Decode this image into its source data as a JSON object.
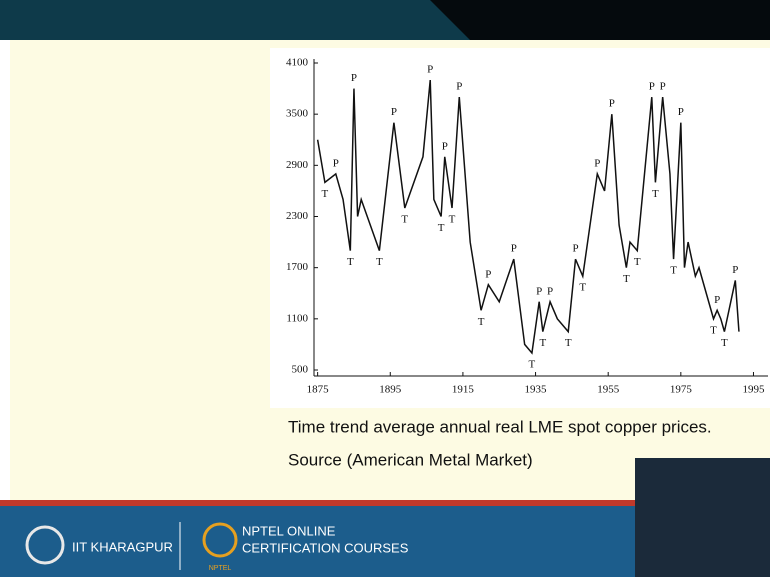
{
  "chart_data": {
    "type": "line",
    "x": [
      1875,
      1877,
      1880,
      1882,
      1884,
      1885,
      1886,
      1887,
      1892,
      1896,
      1899,
      1904,
      1906,
      1907,
      1909,
      1910,
      1912,
      1914,
      1917,
      1920,
      1922,
      1925,
      1929,
      1932,
      1934,
      1936,
      1937,
      1939,
      1941,
      1944,
      1946,
      1948,
      1952,
      1954,
      1956,
      1958,
      1960,
      1961,
      1963,
      1967,
      1968,
      1970,
      1972,
      1973,
      1975,
      1976,
      1977,
      1979,
      1980,
      1982,
      1984,
      1985,
      1986,
      1987,
      1990,
      1991
    ],
    "values": [
      3200,
      2700,
      2800,
      2500,
      1900,
      3800,
      2300,
      2500,
      1900,
      3400,
      2400,
      3000,
      3900,
      2500,
      2300,
      3000,
      2400,
      3700,
      2000,
      1200,
      1500,
      1300,
      1800,
      800,
      700,
      1300,
      950,
      1300,
      1100,
      950,
      1800,
      1600,
      2800,
      2600,
      3500,
      2200,
      1700,
      2000,
      1900,
      3700,
      2700,
      3700,
      2800,
      1800,
      3400,
      1700,
      2000,
      1600,
      1700,
      1400,
      1100,
      1200,
      1100,
      950,
      1550,
      950
    ],
    "point_labels": [
      null,
      "T",
      "P",
      null,
      "T",
      "P",
      null,
      null,
      "T",
      "P",
      "T",
      null,
      "P",
      null,
      "T",
      "P",
      "T",
      "P",
      null,
      "T",
      "P",
      null,
      "P",
      null,
      "T",
      "P",
      "T",
      "P",
      null,
      "T",
      "P",
      "T",
      "P",
      null,
      "P",
      null,
      "T",
      null,
      "T",
      "P",
      "T",
      "P",
      null,
      "T",
      "P",
      null,
      null,
      null,
      null,
      null,
      "T",
      "P",
      null,
      "T",
      "P",
      null
    ],
    "color": "#111111",
    "xlim": [
      1874,
      1999
    ],
    "xticks": [
      1875,
      1895,
      1915,
      1935,
      1955,
      1975,
      1995
    ],
    "ylim": [
      500,
      4100
    ],
    "yticks": [
      500,
      1100,
      1700,
      2300,
      2900,
      3500,
      4100
    ],
    "caption": [
      "Time trend average annual real LME spot copper prices.",
      "Source (American Metal Market)"
    ]
  },
  "footer": {
    "institute": "IIT KHARAGPUR",
    "program": [
      "NPTEL ONLINE",
      "CERTIFICATION COURSES"
    ],
    "logo_text": "NPTEL"
  }
}
